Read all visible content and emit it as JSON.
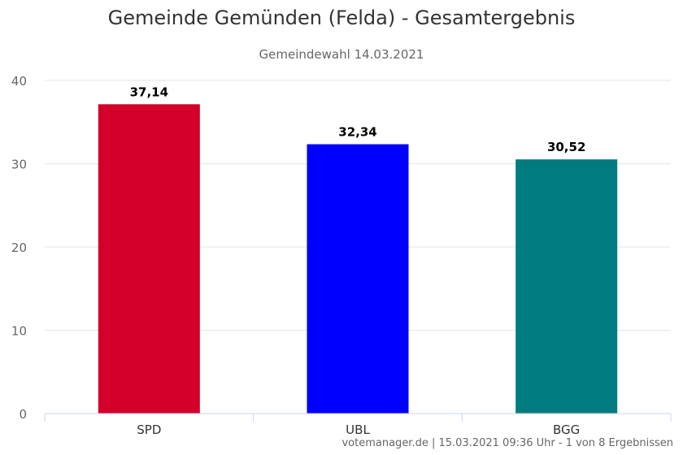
{
  "chart_data": {
    "type": "bar",
    "title": "Gemeinde Gemünden (Felda) - Gesamtergebnis",
    "subtitle": "Gemeindewahl 14.03.2021",
    "categories": [
      "SPD",
      "UBL",
      "BGG"
    ],
    "values": [
      37.14,
      32.34,
      30.52
    ],
    "value_labels": [
      "37,14",
      "32,34",
      "30,52"
    ],
    "colors": [
      "#d3002b",
      "#0000ff",
      "#007c80"
    ],
    "ylim": [
      0,
      40
    ],
    "yticks": [
      0,
      10,
      20,
      30,
      40
    ],
    "grid": true,
    "xlabel": "",
    "ylabel": ""
  },
  "credits": "votemanager.de | 15.03.2021 09:36 Uhr - 1 von 8 Ergebnissen"
}
